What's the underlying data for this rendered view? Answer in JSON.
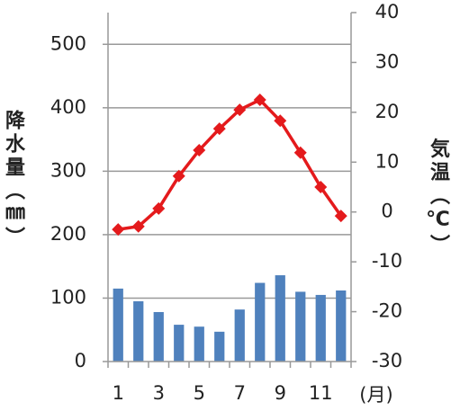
{
  "chart_data": {
    "type": "bar_line",
    "categories": [
      "1",
      null,
      "3",
      null,
      "5",
      null,
      "7",
      null,
      "9",
      null,
      "11",
      null
    ],
    "x_label": "(月)",
    "y_label": "降水量（㎜）",
    "y2_label": "気温（℃）",
    "series": [
      {
        "name": "降水量",
        "type": "bar",
        "color": "#4f81bd",
        "values": [
          115,
          95,
          78,
          58,
          55,
          47,
          82,
          124,
          136,
          110,
          105,
          112
        ]
      },
      {
        "name": "気温",
        "type": "line",
        "axis": "y2",
        "color": "#e41a1c",
        "values": [
          -3.5,
          -2.9,
          0.7,
          7.2,
          12.4,
          16.7,
          20.5,
          22.5,
          18.3,
          11.9,
          5.0,
          -0.8
        ]
      }
    ],
    "ylim": [
      0,
      550
    ],
    "yticks": [
      0,
      100,
      200,
      300,
      400,
      500
    ],
    "y2lim": [
      -30,
      40
    ],
    "y2ticks": [
      -30,
      -20,
      -10,
      0,
      10,
      20,
      30,
      40
    ],
    "grid": true
  }
}
